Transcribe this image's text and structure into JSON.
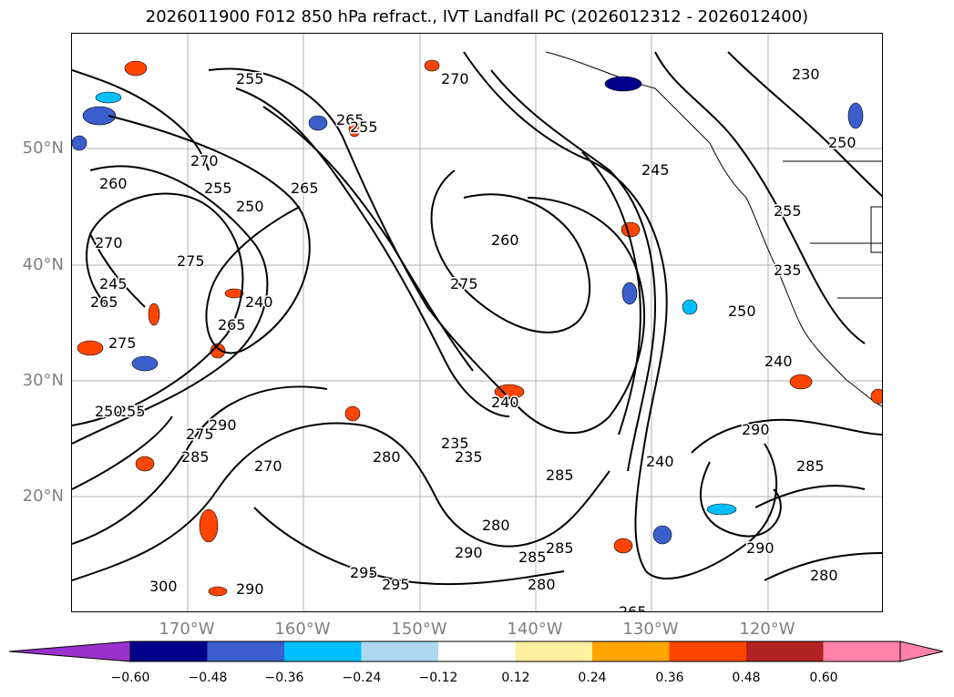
{
  "title": "2026011900 F012 850 hPa refract., IVT Landfall PC (2026012312 - 2026012400)",
  "map": {
    "lat_labels": [
      "50°N",
      "40°N",
      "30°N",
      "20°N"
    ],
    "lon_labels": [
      "170°W",
      "160°W",
      "150°W",
      "140°W",
      "130°W",
      "120°W"
    ],
    "contour_labels": [
      "255",
      "265",
      "255",
      "270",
      "255",
      "250",
      "265",
      "270",
      "275",
      "245",
      "265",
      "240",
      "275",
      "265",
      "255",
      "250",
      "275",
      "285",
      "290",
      "270",
      "280",
      "235",
      "240",
      "260",
      "275",
      "240",
      "235",
      "285",
      "280",
      "285",
      "290",
      "280",
      "295",
      "300",
      "290",
      "285",
      "295",
      "260",
      "230",
      "250",
      "255",
      "245",
      "235",
      "240",
      "290",
      "285",
      "290",
      "280",
      "265",
      "250",
      "270"
    ],
    "colorbar": {
      "ticks": [
        "−0.60",
        "−0.48",
        "−0.36",
        "−0.24",
        "−0.12",
        "0.12",
        "0.24",
        "0.36",
        "0.48",
        "0.60"
      ],
      "colors": [
        "#9932cc",
        "#00008b",
        "#3a5fcd",
        "#00bfff",
        "#add8f0",
        "#ffffff",
        "#fff0a0",
        "#ffa500",
        "#ff4500",
        "#b22222",
        "#ff82ab",
        "#ff82ab"
      ]
    }
  }
}
